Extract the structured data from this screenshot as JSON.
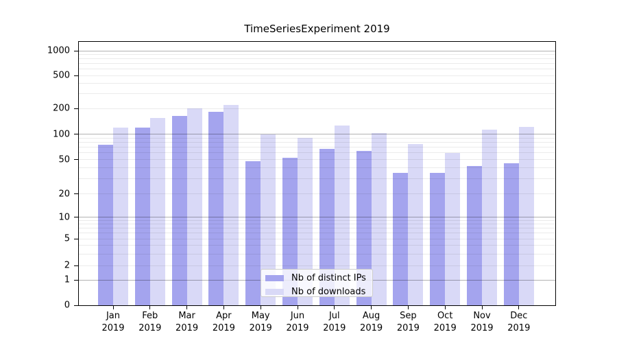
{
  "chart_data": {
    "type": "bar",
    "title": "TimeSeriesExperiment 2019",
    "categories": [
      "Jan 2019",
      "Feb 2019",
      "Mar 2019",
      "Apr 2019",
      "May 2019",
      "Jun 2019",
      "Jul 2019",
      "Aug 2019",
      "Sep 2019",
      "Oct 2019",
      "Nov 2019",
      "Dec 2019"
    ],
    "series": [
      {
        "name": "Nb of distinct IPs",
        "color": "#a4a4ee",
        "values": [
          75,
          120,
          165,
          185,
          48,
          53,
          67,
          63,
          35,
          35,
          42,
          45
        ]
      },
      {
        "name": "Nb of downloads",
        "color": "#d9d9f7",
        "values": [
          120,
          156,
          202,
          220,
          99,
          90,
          126,
          103,
          76,
          60,
          113,
          123
        ]
      }
    ],
    "xlabel": "",
    "ylabel": "",
    "yscale": "symlog",
    "yticks": [
      1000,
      500,
      200,
      100,
      50,
      20,
      10,
      5,
      2,
      1,
      0
    ],
    "ylim": [
      0,
      1300
    ],
    "grid": "horizontal; major lines at 1, 10, 100, 1000; minor lines at 2-9 per decade",
    "legend_position": "lower center inside plot"
  },
  "colors": {
    "background": "#ffffff",
    "bar_distinct_ips": "#a4a4ee",
    "bar_downloads": "#d9d9f7",
    "grid_major": "rgba(0,0,0,0.30)",
    "grid_minor": "rgba(0,0,0,0.08)",
    "spine": "#000000",
    "text": "#000000"
  }
}
